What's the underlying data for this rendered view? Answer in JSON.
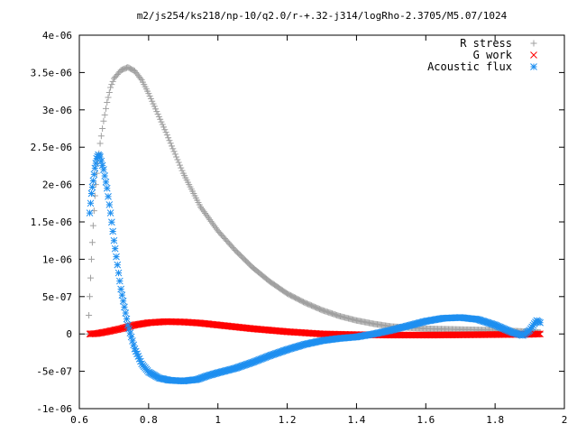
{
  "chart_data": {
    "type": "scatter",
    "title": "m2/js254/ks218/np-10/q2.0/r-+.32-j314/logRho-2.3705/M5.07/1024",
    "xlim": [
      0.6,
      2.0
    ],
    "ylim": [
      -1e-06,
      4e-06
    ],
    "x_ticks": [
      "0.6",
      "0.8",
      "1",
      "1.2",
      "1.4",
      "1.6",
      "1.8",
      "2"
    ],
    "x_tick_values": [
      0.6,
      0.8,
      1.0,
      1.2,
      1.4,
      1.6,
      1.8,
      2.0
    ],
    "y_ticks": [
      "-1e-06",
      "-5e-07",
      "0",
      "5e-07",
      "1e-06",
      "1.5e-06",
      "2e-06",
      "2.5e-06",
      "3e-06",
      "3.5e-06",
      "4e-06"
    ],
    "y_tick_values": [
      -1e-06,
      -5e-07,
      0,
      5e-07,
      1e-06,
      1.5e-06,
      2e-06,
      2.5e-06,
      3e-06,
      3.5e-06,
      4e-06
    ],
    "grid": false,
    "legend_position": "top-right",
    "series": [
      {
        "name": "R stress",
        "marker": "plus",
        "color": "#a0a0a0",
        "points": [
          [
            0.625,
            0.0
          ],
          [
            0.63,
            5e-07
          ],
          [
            0.635,
            1e-06
          ],
          [
            0.64,
            1.45e-06
          ],
          [
            0.645,
            1.85e-06
          ],
          [
            0.65,
            2.15e-06
          ],
          [
            0.66,
            2.55e-06
          ],
          [
            0.67,
            2.85e-06
          ],
          [
            0.68,
            3.1e-06
          ],
          [
            0.69,
            3.3e-06
          ],
          [
            0.7,
            3.42e-06
          ],
          [
            0.72,
            3.53e-06
          ],
          [
            0.74,
            3.57e-06
          ],
          [
            0.76,
            3.52e-06
          ],
          [
            0.78,
            3.4e-06
          ],
          [
            0.8,
            3.22e-06
          ],
          [
            0.85,
            2.7e-06
          ],
          [
            0.9,
            2.15e-06
          ],
          [
            0.95,
            1.7e-06
          ],
          [
            1.0,
            1.38e-06
          ],
          [
            1.05,
            1.12e-06
          ],
          [
            1.1,
            8.9e-07
          ],
          [
            1.15,
            7e-07
          ],
          [
            1.2,
            5.4e-07
          ],
          [
            1.25,
            4.2e-07
          ],
          [
            1.3,
            3.2e-07
          ],
          [
            1.35,
            2.4e-07
          ],
          [
            1.4,
            1.8e-07
          ],
          [
            1.45,
            1.35e-07
          ],
          [
            1.5,
            1e-07
          ],
          [
            1.6,
            7e-08
          ],
          [
            1.7,
            6e-08
          ],
          [
            1.8,
            5e-08
          ],
          [
            1.85,
            4e-08
          ],
          [
            1.9,
            3e-08
          ],
          [
            1.93,
            2e-08
          ]
        ]
      },
      {
        "name": "G work",
        "marker": "cross",
        "color": "#ff0000",
        "points": [
          [
            0.63,
            0.0
          ],
          [
            0.65,
            5e-09
          ],
          [
            0.68,
            3e-08
          ],
          [
            0.72,
            7e-08
          ],
          [
            0.76,
            1.2e-07
          ],
          [
            0.8,
            1.5e-07
          ],
          [
            0.85,
            1.65e-07
          ],
          [
            0.9,
            1.6e-07
          ],
          [
            0.95,
            1.45e-07
          ],
          [
            1.0,
            1.2e-07
          ],
          [
            1.1,
            7e-08
          ],
          [
            1.2,
            3e-08
          ],
          [
            1.3,
            0.0
          ],
          [
            1.4,
            -1e-08
          ],
          [
            1.5,
            -1.5e-08
          ],
          [
            1.6,
            -1.5e-08
          ],
          [
            1.7,
            -1.2e-08
          ],
          [
            1.8,
            -8e-09
          ],
          [
            1.9,
            -5e-09
          ],
          [
            1.93,
            0.0
          ]
        ]
      },
      {
        "name": "Acoustic flux",
        "marker": "star",
        "color": "#1e8ff0",
        "points": [
          [
            0.63,
            1.62e-06
          ],
          [
            0.635,
            1.88e-06
          ],
          [
            0.64,
            2.05e-06
          ],
          [
            0.645,
            2.22e-06
          ],
          [
            0.65,
            2.35e-06
          ],
          [
            0.655,
            2.4e-06
          ],
          [
            0.66,
            2.37e-06
          ],
          [
            0.67,
            2.2e-06
          ],
          [
            0.68,
            1.95e-06
          ],
          [
            0.69,
            1.62e-06
          ],
          [
            0.7,
            1.25e-06
          ],
          [
            0.72,
            6e-07
          ],
          [
            0.74,
            1.2e-07
          ],
          [
            0.76,
            -2e-07
          ],
          [
            0.78,
            -4e-07
          ],
          [
            0.8,
            -5.1e-07
          ],
          [
            0.83,
            -5.9e-07
          ],
          [
            0.86,
            -6.2e-07
          ],
          [
            0.9,
            -6.3e-07
          ],
          [
            0.94,
            -6.1e-07
          ],
          [
            0.97,
            -5.6e-07
          ],
          [
            1.0,
            -5.2e-07
          ],
          [
            1.05,
            -4.6e-07
          ],
          [
            1.1,
            -3.8e-07
          ],
          [
            1.15,
            -2.9e-07
          ],
          [
            1.2,
            -2.1e-07
          ],
          [
            1.25,
            -1.4e-07
          ],
          [
            1.3,
            -9e-08
          ],
          [
            1.35,
            -6e-08
          ],
          [
            1.4,
            -4e-08
          ],
          [
            1.45,
            0.0
          ],
          [
            1.5,
            5e-08
          ],
          [
            1.55,
            1.1e-07
          ],
          [
            1.6,
            1.7e-07
          ],
          [
            1.65,
            2.1e-07
          ],
          [
            1.7,
            2.2e-07
          ],
          [
            1.75,
            1.95e-07
          ],
          [
            1.8,
            1.2e-07
          ],
          [
            1.85,
            2e-08
          ],
          [
            1.88,
            -2e-08
          ],
          [
            1.9,
            5e-08
          ],
          [
            1.92,
            1.8e-07
          ],
          [
            1.93,
            1.5e-07
          ]
        ]
      }
    ]
  }
}
